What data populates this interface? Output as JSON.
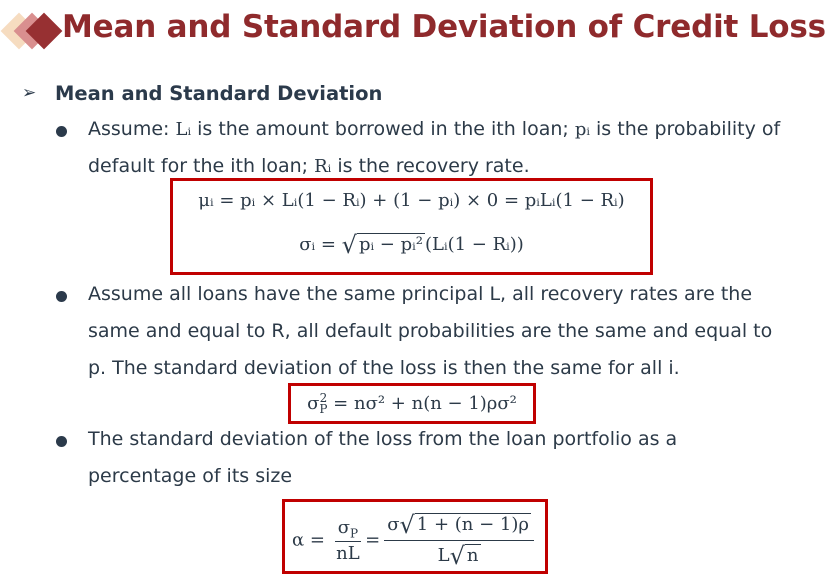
{
  "title": "Mean and Standard Deviation of Credit Losses",
  "heading": "Mean and Standard Deviation",
  "colors": {
    "title": "#8f2a2c",
    "box_border": "#c00000",
    "text": "#2c3a48",
    "logo": [
      "#f6dcc0",
      "#d98f8f",
      "#973032"
    ]
  },
  "icons": {
    "heading_marker": "arrowhead-icon",
    "bullet": "filled-circle-bullet"
  },
  "bullets": [
    {
      "line1": [
        "Assume: ",
        "Lᵢ",
        " is the amount borrowed in the ith loan; ",
        "pᵢ",
        " is the probability of"
      ],
      "line2": [
        "default for the ith loan; ",
        "Rᵢ",
        " is the recovery rate."
      ]
    },
    {
      "line1": "Assume all loans have the same principal L, all recovery rates are the",
      "line2": "same and equal to R, all default probabilities are the same and equal to",
      "line3": "p. The standard deviation of the loss is then the same for all i."
    },
    {
      "line1": "The standard deviation of the loss from the loan portfolio as a",
      "line2": "percentage of its size"
    }
  ],
  "formulas": {
    "mean": "μᵢ = pᵢ × Lᵢ(1 − Rᵢ) + (1 − pᵢ) × 0 = pᵢLᵢ(1 − Rᵢ)",
    "sd": {
      "lhs": "σᵢ = ",
      "radicand": "pᵢ − pᵢ²",
      "rest": "(Lᵢ(1 − Rᵢ))"
    },
    "portfolio": {
      "base": "σ",
      "sub": "P",
      "sup": "2",
      "rhs": " = nσ² + n(n − 1)ρσ²"
    },
    "alpha": {
      "lhs": "α = ",
      "frac1_num": "σ",
      "frac1_num_sub": "P",
      "frac1_den": "nL",
      "eq": "=",
      "frac2_num_pre": "σ",
      "frac2_radicand": "1 + (n − 1)ρ",
      "frac2_den_pre": "L",
      "frac2_den_radicand": "n"
    }
  }
}
